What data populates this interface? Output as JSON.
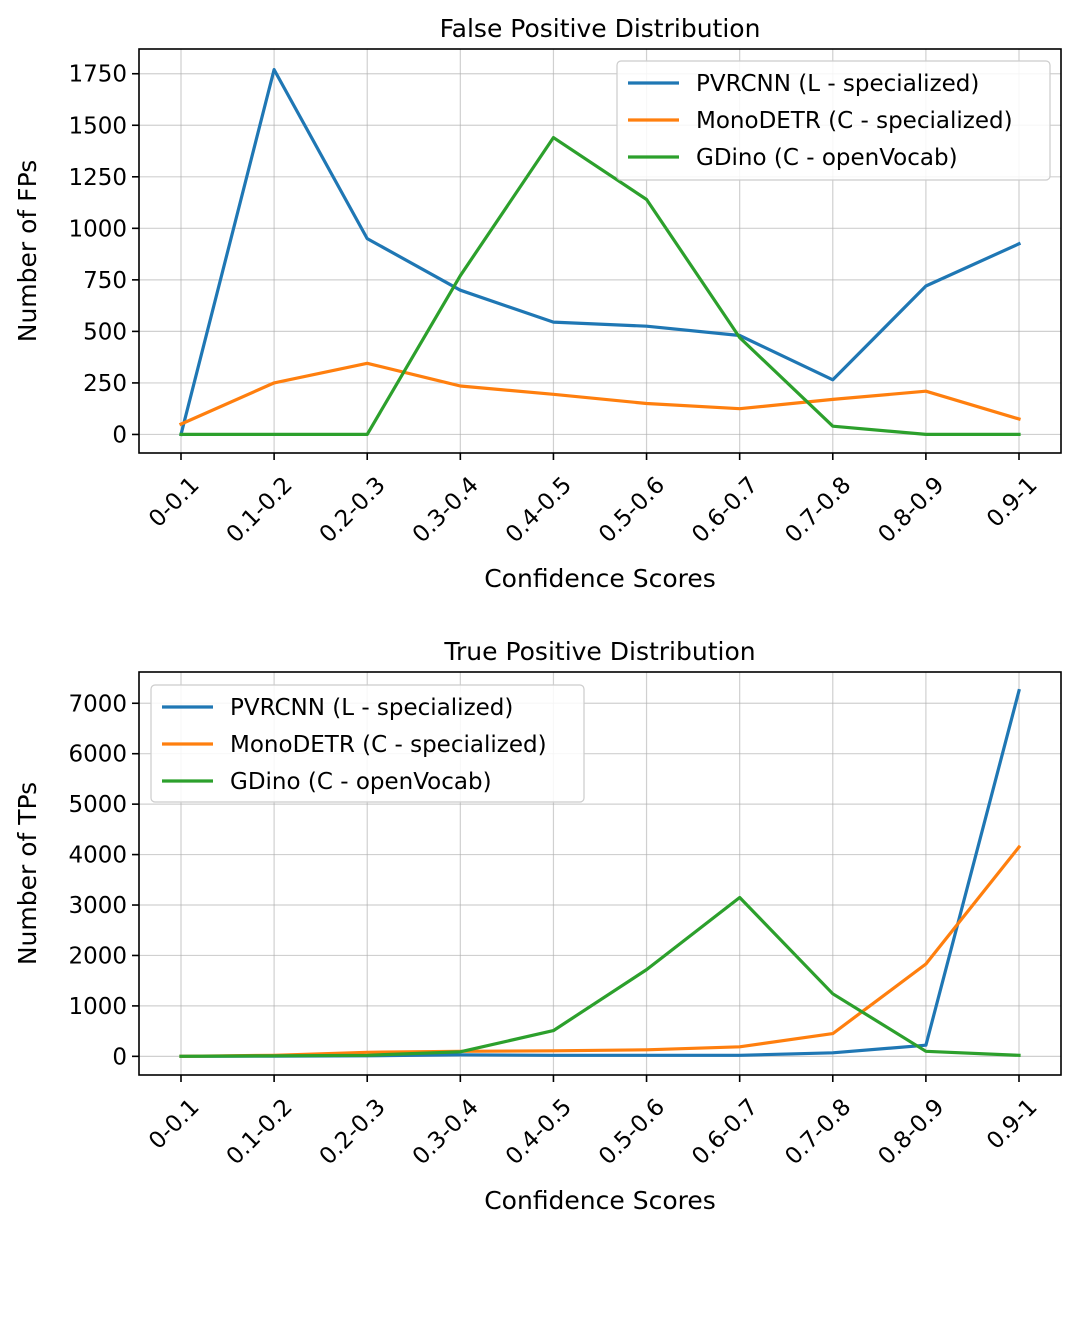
{
  "chart_data": [
    {
      "type": "line",
      "title": "False Positive Distribution",
      "xlabel": "Confidence Scores",
      "ylabel": "Number of FPs",
      "categories": [
        "0-0.1",
        "0.1-0.2",
        "0.2-0.3",
        "0.3-0.4",
        "0.4-0.5",
        "0.5-0.6",
        "0.6-0.7",
        "0.7-0.8",
        "0.8-0.9",
        "0.9-1"
      ],
      "ylim": [
        -90,
        1870
      ],
      "yticks": [
        0,
        250,
        500,
        750,
        1000,
        1250,
        1500,
        1750
      ],
      "grid": true,
      "legend_loc": "upper right",
      "series": [
        {
          "name": "PVRCNN (L - specialized)",
          "color": "#1f77b4",
          "values": [
            0,
            1770,
            950,
            700,
            545,
            525,
            480,
            265,
            720,
            925
          ]
        },
        {
          "name": "MonoDETR (C - specialized)",
          "color": "#ff7f0e",
          "values": [
            50,
            250,
            345,
            235,
            195,
            150,
            125,
            170,
            210,
            75
          ]
        },
        {
          "name": "GDino (C - openVocab)",
          "color": "#2ca02c",
          "values": [
            0,
            0,
            0,
            770,
            1440,
            1140,
            470,
            40,
            0,
            0
          ]
        }
      ]
    },
    {
      "type": "line",
      "title": "True Positive Distribution",
      "xlabel": "Confidence Scores",
      "ylabel": "Number of TPs",
      "categories": [
        "0-0.1",
        "0.1-0.2",
        "0.2-0.3",
        "0.3-0.4",
        "0.4-0.5",
        "0.5-0.6",
        "0.6-0.7",
        "0.7-0.8",
        "0.8-0.9",
        "0.9-1"
      ],
      "ylim": [
        -370,
        7620
      ],
      "yticks": [
        0,
        1000,
        2000,
        3000,
        4000,
        5000,
        6000,
        7000
      ],
      "grid": true,
      "legend_loc": "upper left",
      "series": [
        {
          "name": "PVRCNN (L - specialized)",
          "color": "#1f77b4",
          "values": [
            0,
            5,
            10,
            30,
            20,
            20,
            20,
            70,
            220,
            7250
          ]
        },
        {
          "name": "MonoDETR (C - specialized)",
          "color": "#ff7f0e",
          "values": [
            0,
            20,
            80,
            100,
            110,
            130,
            190,
            450,
            1830,
            4150
          ]
        },
        {
          "name": "GDino (C - openVocab)",
          "color": "#2ca02c",
          "values": [
            0,
            10,
            20,
            90,
            510,
            1720,
            3150,
            1240,
            100,
            20
          ]
        }
      ]
    }
  ]
}
